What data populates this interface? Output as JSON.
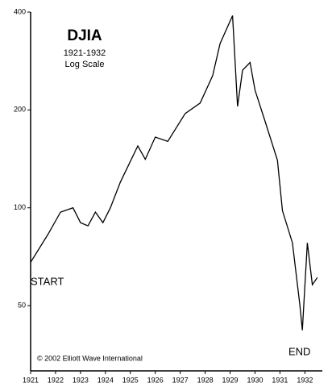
{
  "chart_data": {
    "type": "line",
    "title": "DJIA",
    "subtitle": "1921-1932",
    "scale_note": "Log Scale",
    "annotations": [
      "START",
      "END",
      "© 2002 Elliott Wave International"
    ],
    "log_scale": true,
    "color": "#000000",
    "x": [
      1921.0,
      1921.7,
      1922.2,
      1922.7,
      1923.0,
      1923.3,
      1923.6,
      1923.9,
      1924.2,
      1924.6,
      1925.3,
      1925.6,
      1926.0,
      1926.5,
      1927.2,
      1927.8,
      1928.3,
      1928.6,
      1929.1,
      1929.3,
      1929.5,
      1929.8,
      1930.0,
      1930.4,
      1930.9,
      1931.1,
      1931.5,
      1931.8,
      1931.9,
      1932.1,
      1932.3,
      1932.5
    ],
    "values": [
      68,
      83,
      97,
      100,
      90,
      88,
      97,
      90,
      100,
      120,
      155,
      141,
      165,
      160,
      195,
      210,
      255,
      320,
      390,
      205,
      265,
      280,
      230,
      185,
      140,
      98,
      78,
      50,
      42,
      78,
      58,
      61
    ],
    "xlim": [
      1921,
      1932.7
    ],
    "xticks": [
      1921,
      1922,
      1923,
      1924,
      1925,
      1926,
      1927,
      1928,
      1929,
      1930,
      1931,
      1932
    ],
    "ylim": [
      31.5,
      400
    ],
    "yticks": [
      50,
      100,
      200,
      400
    ]
  }
}
